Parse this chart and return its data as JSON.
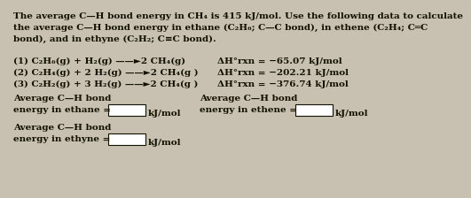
{
  "bg_color": "#c8c0b0",
  "text_color": "#111100",
  "title_lines": [
    "The average C—H bond energy in CH₄ is 415 kJ/mol. Use the following data to calculate",
    "the average C—H bond energy in ethane (C₂H₆; C—C bond), in ethene (C₂H₄; C═C",
    "bond), and in ethyne (C₂H₂; C≡C bond)."
  ],
  "rxn1_left": "(1) C₂H₆(g) + H₂(g) ——►2 CH₄(g)",
  "rxn1_right": "ΔH°rxn = −65.07 kJ/mol",
  "rxn2_left": "(2) C₂H₄(g) + 2 H₂(g) ——►2 CH₄(g )",
  "rxn2_right": "ΔH°rxn = −202.21 kJ/mol",
  "rxn3_left": "(3) C₂H₂(g) + 3 H₂(g) ——►2 CH₄(g )",
  "rxn3_right": "ΔH°rxn = −376.74 kJ/mol",
  "label_ethane_1": "Average C—H bond",
  "label_ethane_2": "energy in ethane =",
  "label_ethene_1": "Average C—H bond",
  "label_ethene_2": "energy in ethene =",
  "label_ethyne_1": "Average C—H bond",
  "label_ethyne_2": "energy in ethyne =",
  "unit": "kJ/mol",
  "fs": 7.5,
  "fs_title": 7.5
}
